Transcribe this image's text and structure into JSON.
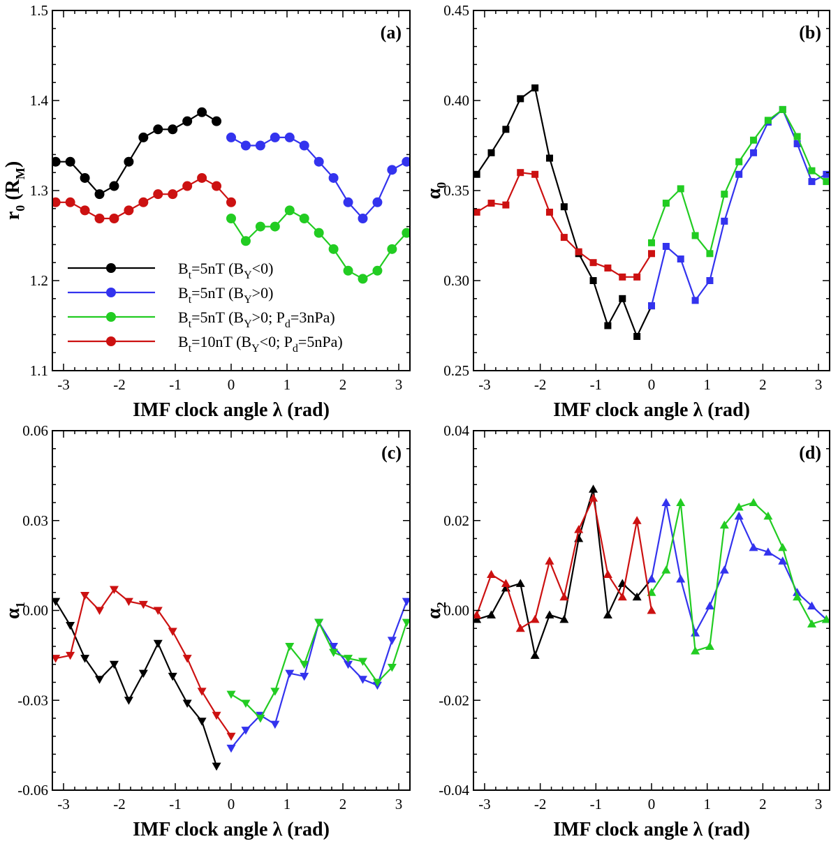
{
  "colors": {
    "black": "#000000",
    "blue": "#3333ee",
    "green": "#22cc22",
    "red": "#cc1111"
  },
  "xlabel": "IMF clock angle λ (rad)",
  "legend": {
    "entries": [
      {
        "series": "black",
        "base": "B",
        "sub1": "t",
        "mid1": "=5nT (B",
        "sub2": "Y",
        "mid2": "<0)",
        "sub3": "",
        "mid3": ""
      },
      {
        "series": "blue",
        "base": "B",
        "sub1": "t",
        "mid1": "=5nT (B",
        "sub2": "Y",
        "mid2": ">0)",
        "sub3": "",
        "mid3": ""
      },
      {
        "series": "green",
        "base": "B",
        "sub1": "t",
        "mid1": "=5nT (B",
        "sub2": "Y",
        "mid2": ">0; P",
        "sub3": "d",
        "mid3": "=3nPa)"
      },
      {
        "series": "red",
        "base": "B",
        "sub1": "t",
        "mid1": "=10nT (B",
        "sub2": "Y",
        "mid2": "<0; P",
        "sub3": "d",
        "mid3": "=5nPa)"
      }
    ]
  },
  "chart_data": [
    {
      "id": "a",
      "type": "line",
      "tag": "(a)",
      "ylabel": {
        "base": "r",
        "sub": "0",
        "rest": " (R",
        "sub2": "M",
        "tail": ")"
      },
      "xlim": [
        -3.2,
        3.2
      ],
      "ylim": [
        1.1,
        1.5
      ],
      "xticks": [
        -3,
        -2,
        -1,
        0,
        1,
        2,
        3
      ],
      "yticks": [
        1.1,
        1.2,
        1.3,
        1.4,
        1.5
      ],
      "ytick_labels": [
        "1.1",
        "1.2",
        "1.3",
        "1.4",
        "1.5"
      ],
      "marker": "circle",
      "series": [
        {
          "name": "black",
          "x": [
            -3.1416,
            -2.8798,
            -2.618,
            -2.3562,
            -2.0944,
            -1.8326,
            -1.5708,
            -1.309,
            -1.0472,
            -0.7854,
            -0.5236,
            -0.2618
          ],
          "y": [
            1.332,
            1.332,
            1.314,
            1.296,
            1.305,
            1.332,
            1.359,
            1.368,
            1.368,
            1.377,
            1.387,
            1.377
          ]
        },
        {
          "name": "blue",
          "x": [
            0,
            0.2618,
            0.5236,
            0.7854,
            1.0472,
            1.309,
            1.5708,
            1.8326,
            2.0944,
            2.3562,
            2.618,
            2.8798,
            3.1416
          ],
          "y": [
            1.359,
            1.35,
            1.35,
            1.359,
            1.359,
            1.35,
            1.332,
            1.314,
            1.287,
            1.269,
            1.287,
            1.323,
            1.332
          ]
        },
        {
          "name": "green",
          "x": [
            0,
            0.2618,
            0.5236,
            0.7854,
            1.0472,
            1.309,
            1.5708,
            1.8326,
            2.0944,
            2.3562,
            2.618,
            2.8798,
            3.1416
          ],
          "y": [
            1.269,
            1.244,
            1.26,
            1.26,
            1.278,
            1.269,
            1.253,
            1.235,
            1.211,
            1.202,
            1.211,
            1.235,
            1.253
          ]
        },
        {
          "name": "red",
          "x": [
            -3.1416,
            -2.8798,
            -2.618,
            -2.3562,
            -2.0944,
            -1.8326,
            -1.5708,
            -1.309,
            -1.0472,
            -0.7854,
            -0.5236,
            -0.2618,
            0
          ],
          "y": [
            1.287,
            1.287,
            1.278,
            1.269,
            1.269,
            1.278,
            1.287,
            1.296,
            1.296,
            1.305,
            1.314,
            1.305,
            1.287
          ]
        }
      ]
    },
    {
      "id": "b",
      "type": "line",
      "tag": "(b)",
      "ylabel": {
        "base": "α",
        "sub": "0",
        "rest": "",
        "sub2": "",
        "tail": ""
      },
      "xlim": [
        -3.2,
        3.2
      ],
      "ylim": [
        0.25,
        0.45
      ],
      "xticks": [
        -3,
        -2,
        -1,
        0,
        1,
        2,
        3
      ],
      "yticks": [
        0.25,
        0.3,
        0.35,
        0.4,
        0.45
      ],
      "ytick_labels": [
        "0.25",
        "0.30",
        "0.35",
        "0.40",
        "0.45"
      ],
      "marker": "square",
      "series": [
        {
          "name": "black",
          "x": [
            -3.1416,
            -2.8798,
            -2.618,
            -2.3562,
            -2.0944,
            -1.8326,
            -1.5708,
            -1.309,
            -1.0472,
            -0.7854,
            -0.5236,
            -0.2618,
            0
          ],
          "y": [
            0.359,
            0.371,
            0.384,
            0.401,
            0.407,
            0.368,
            0.341,
            0.315,
            0.3,
            0.275,
            0.29,
            0.269,
            0.286
          ]
        },
        {
          "name": "blue",
          "x": [
            0,
            0.2618,
            0.5236,
            0.7854,
            1.0472,
            1.309,
            1.5708,
            1.8326,
            2.0944,
            2.3562,
            2.618,
            2.8798,
            3.1416
          ],
          "y": [
            0.286,
            0.319,
            0.312,
            0.289,
            0.3,
            0.333,
            0.359,
            0.371,
            0.388,
            0.395,
            0.376,
            0.355,
            0.359
          ]
        },
        {
          "name": "green",
          "x": [
            0,
            0.2618,
            0.5236,
            0.7854,
            1.0472,
            1.309,
            1.5708,
            1.8326,
            2.0944,
            2.3562,
            2.618,
            2.8798,
            3.1416
          ],
          "y": [
            0.321,
            0.343,
            0.351,
            0.325,
            0.315,
            0.348,
            0.366,
            0.378,
            0.389,
            0.395,
            0.38,
            0.361,
            0.355
          ]
        },
        {
          "name": "red",
          "x": [
            -3.1416,
            -2.8798,
            -2.618,
            -2.3562,
            -2.0944,
            -1.8326,
            -1.5708,
            -1.309,
            -1.0472,
            -0.7854,
            -0.5236,
            -0.2618,
            0
          ],
          "y": [
            0.338,
            0.343,
            0.342,
            0.36,
            0.359,
            0.338,
            0.324,
            0.316,
            0.31,
            0.307,
            0.302,
            0.302,
            0.315
          ]
        }
      ]
    },
    {
      "id": "c",
      "type": "line",
      "tag": "(c)",
      "ylabel": {
        "base": "α",
        "sub": "1",
        "rest": "",
        "sub2": "",
        "tail": ""
      },
      "xlim": [
        -3.2,
        3.2
      ],
      "ylim": [
        -0.06,
        0.06
      ],
      "xticks": [
        -3,
        -2,
        -1,
        0,
        1,
        2,
        3
      ],
      "yticks": [
        -0.06,
        -0.03,
        0,
        0.03,
        0.06
      ],
      "ytick_labels": [
        "-0.06",
        "-0.03",
        "0.00",
        "0.03",
        "0.06"
      ],
      "marker": "triangle-down",
      "series": [
        {
          "name": "black",
          "x": [
            -3.1416,
            -2.8798,
            -2.618,
            -2.3562,
            -2.0944,
            -1.8326,
            -1.5708,
            -1.309,
            -1.0472,
            -0.7854,
            -0.5236,
            -0.2618
          ],
          "y": [
            0.003,
            -0.005,
            -0.016,
            -0.023,
            -0.018,
            -0.03,
            -0.021,
            -0.011,
            -0.022,
            -0.031,
            -0.037,
            -0.052
          ]
        },
        {
          "name": "blue",
          "x": [
            0,
            0.2618,
            0.5236,
            0.7854,
            1.0472,
            1.309,
            1.5708,
            1.8326,
            2.0944,
            2.3562,
            2.618,
            2.8798,
            3.1416
          ],
          "y": [
            -0.046,
            -0.04,
            -0.035,
            -0.038,
            -0.021,
            -0.022,
            -0.004,
            -0.012,
            -0.018,
            -0.023,
            -0.025,
            -0.01,
            0.003
          ]
        },
        {
          "name": "green",
          "x": [
            0,
            0.2618,
            0.5236,
            0.7854,
            1.0472,
            1.309,
            1.5708,
            1.8326,
            2.0944,
            2.3562,
            2.618,
            2.8798,
            3.1416
          ],
          "y": [
            -0.028,
            -0.031,
            -0.036,
            -0.027,
            -0.012,
            -0.018,
            -0.004,
            -0.014,
            -0.016,
            -0.017,
            -0.024,
            -0.019,
            -0.004
          ]
        },
        {
          "name": "red",
          "x": [
            -3.1416,
            -2.8798,
            -2.618,
            -2.3562,
            -2.0944,
            -1.8326,
            -1.5708,
            -1.309,
            -1.0472,
            -0.7854,
            -0.5236,
            -0.2618,
            0
          ],
          "y": [
            -0.016,
            -0.015,
            0.005,
            0,
            0.007,
            0.003,
            0.002,
            0,
            -0.007,
            -0.016,
            -0.027,
            -0.035,
            -0.042
          ]
        }
      ]
    },
    {
      "id": "d",
      "type": "line",
      "tag": "(d)",
      "ylabel": {
        "base": "α",
        "sub": "2",
        "rest": "",
        "sub2": "",
        "tail": ""
      },
      "xlim": [
        -3.2,
        3.2
      ],
      "ylim": [
        -0.04,
        0.04
      ],
      "xticks": [
        -3,
        -2,
        -1,
        0,
        1,
        2,
        3
      ],
      "yticks": [
        -0.04,
        -0.02,
        0,
        0.02,
        0.04
      ],
      "ytick_labels": [
        "-0.04",
        "-0.02",
        "0.00",
        "0.02",
        "0.04"
      ],
      "marker": "triangle-up",
      "series": [
        {
          "name": "black",
          "x": [
            -3.1416,
            -2.8798,
            -2.618,
            -2.3562,
            -2.0944,
            -1.8326,
            -1.5708,
            -1.309,
            -1.0472,
            -0.7854,
            -0.5236,
            -0.2618,
            0
          ],
          "y": [
            -0.002,
            -0.001,
            0.005,
            0.006,
            -0.01,
            -0.001,
            -0.002,
            0.016,
            0.027,
            -0.001,
            0.006,
            0.003,
            0.007
          ]
        },
        {
          "name": "blue",
          "x": [
            0,
            0.2618,
            0.5236,
            0.7854,
            1.0472,
            1.309,
            1.5708,
            1.8326,
            2.0944,
            2.3562,
            2.618,
            2.8798,
            3.1416
          ],
          "y": [
            0.007,
            0.024,
            0.007,
            -0.005,
            0.001,
            0.009,
            0.021,
            0.014,
            0.013,
            0.011,
            0.004,
            0.001,
            -0.002
          ]
        },
        {
          "name": "green",
          "x": [
            0,
            0.2618,
            0.5236,
            0.7854,
            1.0472,
            1.309,
            1.5708,
            1.8326,
            2.0944,
            2.3562,
            2.618,
            2.8798,
            3.1416
          ],
          "y": [
            0.004,
            0.009,
            0.024,
            -0.009,
            -0.008,
            0.019,
            0.023,
            0.024,
            0.021,
            0.014,
            0.003,
            -0.003,
            -0.002
          ]
        },
        {
          "name": "red",
          "x": [
            -3.1416,
            -2.8798,
            -2.618,
            -2.3562,
            -2.0944,
            -1.8326,
            -1.5708,
            -1.309,
            -1.0472,
            -0.7854,
            -0.5236,
            -0.2618,
            0
          ],
          "y": [
            -0.001,
            0.008,
            0.006,
            -0.004,
            -0.002,
            0.011,
            0.003,
            0.018,
            0.025,
            0.008,
            0.003,
            0.02,
            0
          ]
        }
      ]
    }
  ]
}
